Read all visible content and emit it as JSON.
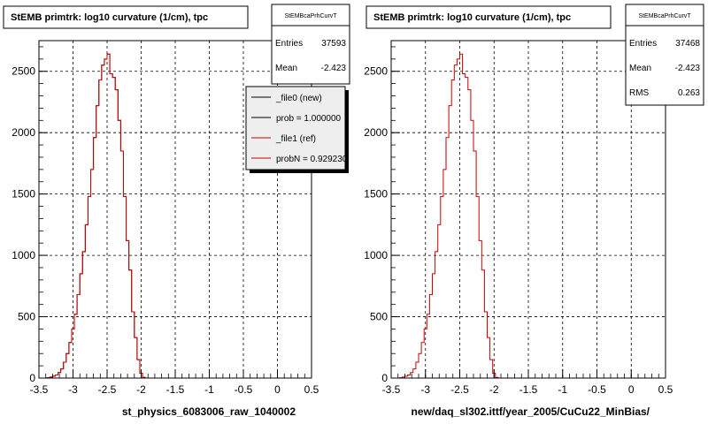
{
  "panels": [
    {
      "title": "StEMB primtrk: log10 curvature (1/cm), tpc",
      "stats": {
        "name": "StEMBcaPrhCurvT",
        "rows": [
          [
            "Entries",
            "37593"
          ],
          [
            "Mean",
            "-2.423"
          ]
        ]
      },
      "legend": {
        "entries": [
          {
            "label": "_file0 (new)",
            "color": "#000000"
          },
          {
            "label": "prob = 1.000000",
            "color": "#000000"
          },
          {
            "label": "_file1 (ref)",
            "color": "#cc0000"
          },
          {
            "label": "probN = 0.929230",
            "color": "#cc0000"
          }
        ]
      },
      "xlabel": "st_physics_6083006_raw_1040002"
    },
    {
      "title": "StEMB primtrk: log10 curvature (1/cm), tpc",
      "stats": {
        "name": "StEMBcaPrhCurvT",
        "rows": [
          [
            "Entries",
            "37468"
          ],
          [
            "Mean",
            "-2.423"
          ],
          [
            "RMS",
            "0.263"
          ]
        ]
      },
      "xlabel": "new/daq_sl302.ittf/year_2005/CuCu22_MinBias/"
    }
  ],
  "chart_data": [
    {
      "type": "bar",
      "title": "StEMB primtrk: log10 curvature (1/cm), tpc",
      "xlabel": "st_physics_6083006_raw_1040002",
      "ylabel": "",
      "xlim": [
        -3.5,
        0.5
      ],
      "ylim": [
        0,
        2750
      ],
      "xticks": [
        "-3.5",
        "-3",
        "-2.5",
        "-2",
        "-1.5",
        "-1",
        "-0.5",
        "0",
        "0.5"
      ],
      "yticks": [
        "0",
        "500",
        "1000",
        "1500",
        "2000",
        "2500"
      ],
      "grid": true,
      "legend": "top-right",
      "bin_start": -3.5,
      "bin_width": 0.04,
      "series": [
        {
          "name": "_file0 (new)",
          "color": "#000000",
          "values": [
            0,
            0,
            0,
            3,
            8,
            15,
            25,
            45,
            75,
            130,
            200,
            290,
            400,
            520,
            680,
            850,
            1030,
            1250,
            1480,
            1700,
            1960,
            2220,
            2430,
            2550,
            2600,
            2640,
            2480,
            2450,
            2350,
            2100,
            1850,
            1480,
            1120,
            880,
            540,
            330,
            150,
            40,
            5,
            0,
            0,
            0,
            0,
            0,
            0,
            0,
            0,
            0,
            0,
            0,
            0,
            0,
            0,
            0,
            0,
            0,
            0,
            0,
            0,
            0,
            0,
            0,
            0,
            0,
            0,
            0,
            0,
            0,
            0,
            0,
            0,
            0,
            0,
            0,
            0,
            0,
            0,
            0,
            0,
            0,
            0,
            0,
            0,
            0,
            0,
            0,
            0,
            0,
            0,
            0,
            0,
            0,
            0,
            0,
            0,
            0,
            0,
            0,
            0,
            0
          ]
        },
        {
          "name": "_file1 (ref)",
          "color": "#cc0000",
          "values": [
            0,
            0,
            0,
            3,
            8,
            15,
            25,
            45,
            75,
            130,
            200,
            290,
            400,
            520,
            680,
            850,
            1030,
            1250,
            1480,
            1700,
            1960,
            2220,
            2430,
            2550,
            2600,
            2640,
            2480,
            2450,
            2350,
            2100,
            1850,
            1480,
            1120,
            880,
            540,
            330,
            150,
            40,
            5,
            0,
            0,
            0,
            0,
            0,
            0,
            0,
            0,
            0,
            0,
            0,
            0,
            0,
            0,
            0,
            0,
            0,
            0,
            0,
            0,
            0,
            0,
            0,
            0,
            0,
            0,
            0,
            0,
            0,
            0,
            0,
            0,
            0,
            0,
            0,
            0,
            0,
            0,
            0,
            0,
            0,
            0,
            0,
            0,
            0,
            0,
            0,
            0,
            0,
            0,
            0,
            0,
            0,
            0,
            0,
            0,
            0,
            0,
            0,
            0,
            0
          ]
        }
      ]
    },
    {
      "type": "bar",
      "title": "StEMB primtrk: log10 curvature (1/cm), tpc",
      "xlabel": "new/daq_sl302.ittf/year_2005/CuCu22_MinBias/",
      "ylabel": "",
      "xlim": [
        -3.5,
        0.5
      ],
      "ylim": [
        0,
        2750
      ],
      "xticks": [
        "-3.5",
        "-3",
        "-2.5",
        "-2",
        "-1.5",
        "-1",
        "-0.5",
        "0",
        "0.5"
      ],
      "yticks": [
        "0",
        "500",
        "1000",
        "1500",
        "2000",
        "2500"
      ],
      "grid": true,
      "bin_start": -3.5,
      "bin_width": 0.04,
      "series": [
        {
          "name": "",
          "color": "#cc0000",
          "values": [
            0,
            0,
            0,
            3,
            8,
            15,
            25,
            45,
            75,
            130,
            200,
            290,
            400,
            520,
            680,
            850,
            1030,
            1250,
            1480,
            1700,
            1960,
            2220,
            2430,
            2550,
            2600,
            2640,
            2480,
            2450,
            2350,
            2100,
            1850,
            1480,
            1120,
            880,
            540,
            330,
            150,
            40,
            5,
            0,
            0,
            0,
            0,
            0,
            0,
            0,
            0,
            0,
            0,
            0,
            0,
            0,
            0,
            0,
            0,
            0,
            0,
            0,
            0,
            0,
            0,
            0,
            0,
            0,
            0,
            0,
            0,
            0,
            0,
            0,
            0,
            0,
            0,
            0,
            0,
            0,
            0,
            0,
            0,
            0,
            0,
            0,
            0,
            0,
            0,
            0,
            0,
            0,
            0,
            0,
            0,
            0,
            0,
            0,
            0,
            0,
            0,
            0,
            0,
            0
          ]
        }
      ]
    }
  ]
}
